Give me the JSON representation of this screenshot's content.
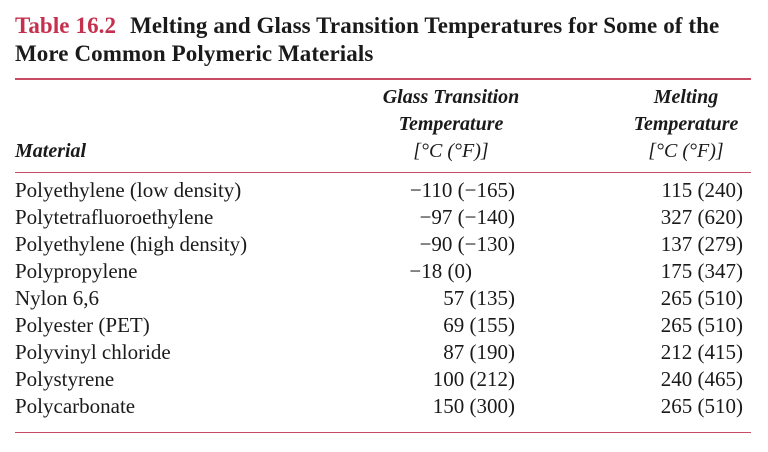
{
  "title": {
    "number": "Table 16.2",
    "text": "Melting and Glass Transition Temperatures for Some of the More Common Polymeric Materials"
  },
  "headers": {
    "material": "Material",
    "glass_line1": "Glass Transition",
    "glass_line2": "Temperature",
    "glass_unit": "[°C (°F)]",
    "melt_line1": "Melting",
    "melt_line2": "Temperature",
    "melt_unit": "[°C (°F)]"
  },
  "colors": {
    "accent": "#c4304e",
    "rule": "#c94a63",
    "text": "#1a1a1a"
  },
  "rows": [
    {
      "material": "Polyethylene (low density)",
      "glass": "−110 (−165)",
      "melt": "115 (240)"
    },
    {
      "material": "Polytetrafluoroethylene",
      "glass": "−97 (−140)",
      "melt": "327 (620)"
    },
    {
      "material": "Polyethylene (high density)",
      "glass": "−90 (−130)",
      "melt": "137 (279)"
    },
    {
      "material": "Polypropylene",
      "glass": "−18 (0)",
      "melt": "175 (347)"
    },
    {
      "material": "Nylon 6,6",
      "glass": "57 (135)",
      "melt": "265 (510)"
    },
    {
      "material": "Polyester (PET)",
      "glass": "69 (155)",
      "melt": "265 (510)"
    },
    {
      "material": "Polyvinyl chloride",
      "glass": "87 (190)",
      "melt": "212 (415)"
    },
    {
      "material": "Polystyrene",
      "glass": "100 (212)",
      "melt": "240 (465)"
    },
    {
      "material": "Polycarbonate",
      "glass": "150 (300)",
      "melt": "265 (510)"
    }
  ]
}
